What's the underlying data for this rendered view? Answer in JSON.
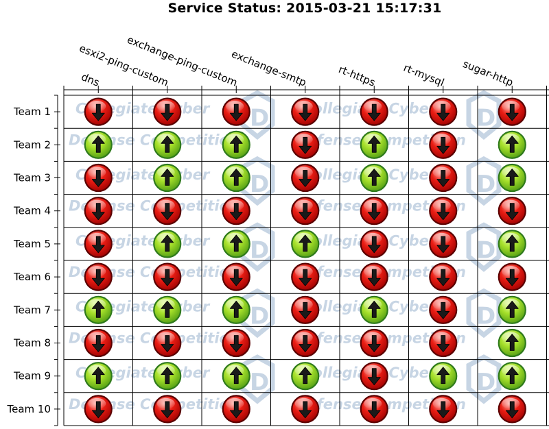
{
  "chart_data": {
    "type": "heatmap",
    "title": "Service Status: 2015-03-21 15:17:31",
    "columns": [
      "dns",
      "esxi2-ping-custom",
      "exchange-ping-custom",
      "exchange-smtp",
      "rt-https",
      "rt-mysql",
      "sugar-http"
    ],
    "rows": [
      "Team 1",
      "Team 2",
      "Team 3",
      "Team 4",
      "Team 5",
      "Team 6",
      "Team 7",
      "Team 8",
      "Team 9",
      "Team 10"
    ],
    "legend_values": {
      "up": 1,
      "down": 0
    },
    "status": [
      [
        0,
        0,
        0,
        0,
        0,
        0,
        0
      ],
      [
        1,
        1,
        1,
        0,
        1,
        0,
        1
      ],
      [
        0,
        1,
        1,
        0,
        1,
        0,
        1
      ],
      [
        0,
        0,
        0,
        0,
        0,
        0,
        0
      ],
      [
        0,
        1,
        1,
        1,
        0,
        0,
        1
      ],
      [
        0,
        0,
        0,
        0,
        0,
        0,
        0
      ],
      [
        1,
        1,
        1,
        0,
        1,
        0,
        1
      ],
      [
        0,
        0,
        0,
        0,
        0,
        0,
        1
      ],
      [
        1,
        1,
        1,
        1,
        0,
        1,
        1
      ],
      [
        0,
        0,
        0,
        0,
        0,
        0,
        0
      ]
    ],
    "colors": {
      "up_fill": "#8fd21a",
      "up_border": "#2f7a1c",
      "down_fill": "#e01010",
      "down_border": "#5a0000",
      "grid": "#000000",
      "watermark": "#c5d3e3"
    },
    "watermark_text": [
      "Collegiate Cyber",
      "Defense Competition"
    ]
  }
}
